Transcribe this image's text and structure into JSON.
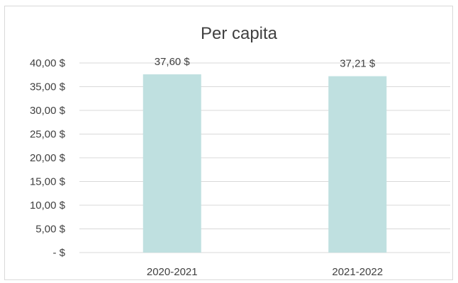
{
  "chart_data": {
    "type": "bar",
    "title": "Per capita",
    "categories": [
      "2020-2021",
      "2021-2022"
    ],
    "values": [
      37.6,
      37.21
    ],
    "data_labels": [
      "37,60 $",
      "37,21 $"
    ],
    "y_tick_labels": [
      "-  $",
      "5,00 $",
      "10,00 $",
      "15,00 $",
      "20,00 $",
      "25,00 $",
      "30,00 $",
      "35,00 $",
      "40,00 $"
    ],
    "y_tick_values": [
      0,
      5,
      10,
      15,
      20,
      25,
      30,
      35,
      40
    ],
    "ylim": [
      0,
      40
    ],
    "grid": true,
    "legend": "none",
    "bar_color": "#bfe0e0",
    "grid_color": "#d9d9d9",
    "text_color": "#404040"
  }
}
